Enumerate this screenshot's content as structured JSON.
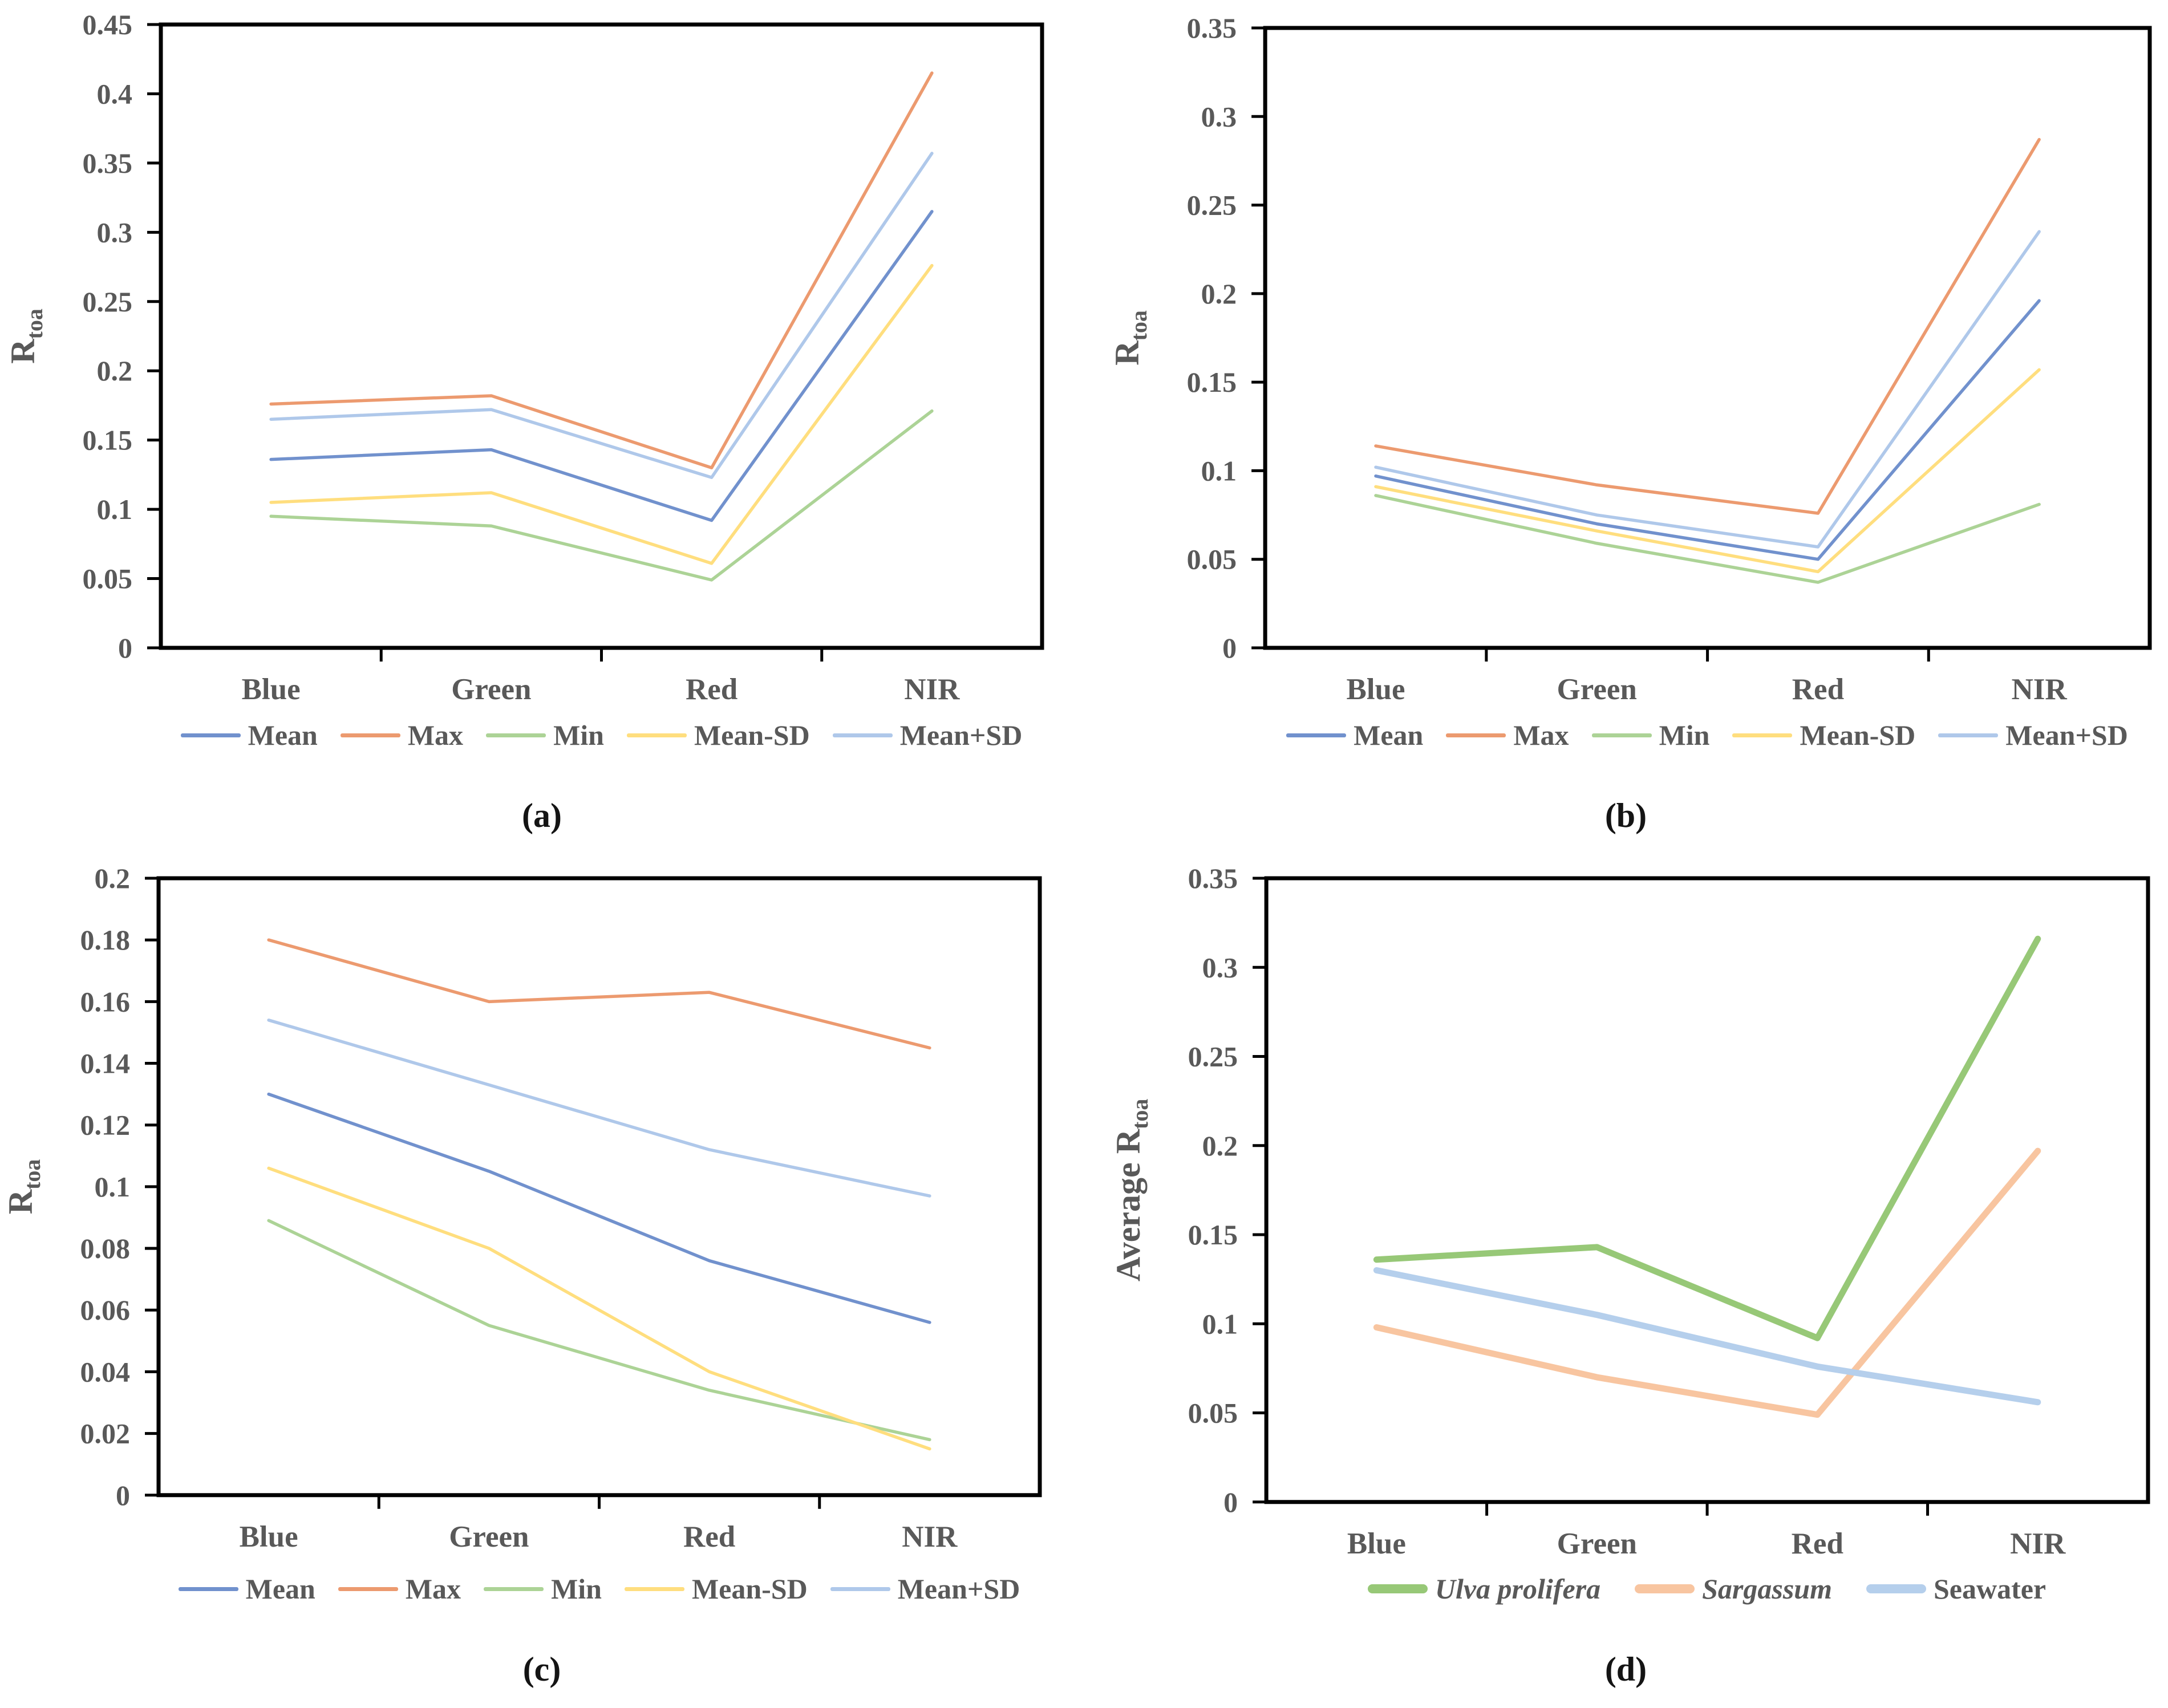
{
  "figure": {
    "background": "#ffffff",
    "text_color": "#595959",
    "axis_color": "#000000"
  },
  "chart_data": [
    {
      "panel_label": "(a)",
      "type": "line",
      "title": "",
      "xlabel": "",
      "ylabel": "Rtoa",
      "ylabel_main": "R",
      "ylabel_sub": "toa",
      "ylim": [
        0,
        0.45
      ],
      "yticks": [
        "0",
        "0.05",
        "0.1",
        "0.15",
        "0.2",
        "0.25",
        "0.3",
        "0.35",
        "0.4",
        "0.45"
      ],
      "categories": [
        "Blue",
        "Green",
        "Red",
        "NIR"
      ],
      "grid": false,
      "legend_position": "bottom",
      "line_width": 5.5,
      "series": [
        {
          "name": "Mean",
          "color": "#7191CD",
          "values": [
            0.136,
            0.143,
            0.092,
            0.315
          ]
        },
        {
          "name": "Max",
          "color": "#EC9A6F",
          "values": [
            0.176,
            0.182,
            0.13,
            0.415
          ]
        },
        {
          "name": "Min",
          "color": "#ACD396",
          "values": [
            0.095,
            0.088,
            0.049,
            0.171
          ]
        },
        {
          "name": "Mean-SD",
          "color": "#FFDE7E",
          "values": [
            0.105,
            0.112,
            0.061,
            0.276
          ]
        },
        {
          "name": "Mean+SD",
          "color": "#AFC8EA",
          "values": [
            0.165,
            0.172,
            0.123,
            0.357
          ]
        }
      ]
    },
    {
      "panel_label": "(b)",
      "type": "line",
      "title": "",
      "xlabel": "",
      "ylabel": "Rtoa",
      "ylabel_main": "R",
      "ylabel_sub": "toa",
      "ylim": [
        0,
        0.35
      ],
      "yticks": [
        "0",
        "0.05",
        "0.1",
        "0.15",
        "0.2",
        "0.25",
        "0.3",
        "0.35"
      ],
      "categories": [
        "Blue",
        "Green",
        "Red",
        "NIR"
      ],
      "grid": false,
      "legend_position": "bottom",
      "line_width": 5.5,
      "series": [
        {
          "name": "Mean",
          "color": "#7191CD",
          "values": [
            0.097,
            0.07,
            0.05,
            0.196
          ]
        },
        {
          "name": "Max",
          "color": "#EC9A6F",
          "values": [
            0.114,
            0.092,
            0.076,
            0.287
          ]
        },
        {
          "name": "Min",
          "color": "#ACD396",
          "values": [
            0.086,
            0.059,
            0.037,
            0.081
          ]
        },
        {
          "name": "Mean-SD",
          "color": "#FFDE7E",
          "values": [
            0.091,
            0.066,
            0.043,
            0.157
          ]
        },
        {
          "name": "Mean+SD",
          "color": "#AFC8EA",
          "values": [
            0.102,
            0.075,
            0.057,
            0.235
          ]
        }
      ]
    },
    {
      "panel_label": "(c)",
      "type": "line",
      "title": "",
      "xlabel": "",
      "ylabel": "Rtoa",
      "ylabel_main": "R",
      "ylabel_sub": "toa",
      "ylim": [
        0,
        0.2
      ],
      "yticks": [
        "0",
        "0.02",
        "0.04",
        "0.06",
        "0.08",
        "0.1",
        "0.12",
        "0.14",
        "0.16",
        "0.18",
        "0.2"
      ],
      "categories": [
        "Blue",
        "Green",
        "Red",
        "NIR"
      ],
      "grid": false,
      "legend_position": "bottom",
      "line_width": 5.5,
      "series": [
        {
          "name": "Mean",
          "color": "#7191CD",
          "values": [
            0.13,
            0.105,
            0.076,
            0.056
          ]
        },
        {
          "name": "Max",
          "color": "#EC9A6F",
          "values": [
            0.18,
            0.16,
            0.163,
            0.145
          ]
        },
        {
          "name": "Min",
          "color": "#ACD396",
          "values": [
            0.089,
            0.055,
            0.034,
            0.018
          ]
        },
        {
          "name": "Mean-SD",
          "color": "#FFDE7E",
          "values": [
            0.106,
            0.08,
            0.04,
            0.015
          ]
        },
        {
          "name": "Mean+SD",
          "color": "#AFC8EA",
          "values": [
            0.154,
            0.133,
            0.112,
            0.097
          ]
        }
      ]
    },
    {
      "panel_label": "(d)",
      "type": "line",
      "title": "",
      "xlabel": "",
      "ylabel": "Average Rtoa",
      "ylabel_main": "Average R",
      "ylabel_sub": "toa",
      "ylim": [
        0,
        0.35
      ],
      "yticks": [
        "0",
        "0.05",
        "0.1",
        "0.15",
        "0.2",
        "0.25",
        "0.3",
        "0.35"
      ],
      "categories": [
        "Blue",
        "Green",
        "Red",
        "NIR"
      ],
      "grid": false,
      "legend_position": "bottom",
      "line_width": 11,
      "series": [
        {
          "name": "Ulva prolifera",
          "italic": true,
          "color": "#97C877",
          "values": [
            0.136,
            0.143,
            0.092,
            0.316
          ]
        },
        {
          "name": "Sargassum",
          "italic": true,
          "color": "#F8C5A0",
          "values": [
            0.098,
            0.07,
            0.049,
            0.197
          ]
        },
        {
          "name": "Seawater",
          "italic": false,
          "color": "#B5CFEC",
          "values": [
            0.13,
            0.105,
            0.076,
            0.056
          ]
        }
      ]
    }
  ]
}
